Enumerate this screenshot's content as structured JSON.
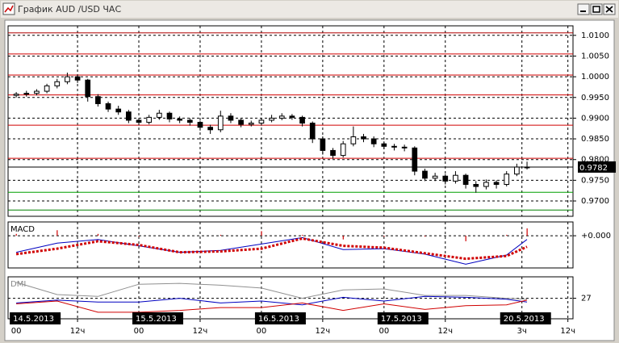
{
  "window": {
    "title": "График AUD /USD ЧАС"
  },
  "chart_data": [
    {
      "type": "candlestick",
      "x": [
        0,
        2,
        4,
        6,
        8,
        10,
        12,
        14,
        16,
        18,
        20,
        22,
        24,
        26,
        28,
        30,
        32,
        34,
        36,
        38,
        40,
        42,
        44,
        46,
        48,
        50,
        52,
        54,
        56,
        58,
        60,
        62,
        64,
        66,
        68,
        70,
        72,
        74,
        76,
        78,
        80,
        82,
        84,
        86,
        88,
        90,
        92,
        94,
        96,
        98,
        100
      ],
      "open": [
        0.9955,
        0.9958,
        0.996,
        0.9965,
        0.9978,
        0.9988,
        1.0,
        0.9992,
        0.9952,
        0.9935,
        0.9922,
        0.9915,
        0.9895,
        0.989,
        0.9902,
        0.9912,
        0.9898,
        0.9895,
        0.989,
        0.9878,
        0.9872,
        0.9905,
        0.9895,
        0.9885,
        0.9888,
        0.9895,
        0.99,
        0.9905,
        0.9902,
        0.9888,
        0.985,
        0.9822,
        0.981,
        0.9838,
        0.9855,
        0.985,
        0.9838,
        0.9832,
        0.983,
        0.9828,
        0.9772,
        0.9755,
        0.976,
        0.9748,
        0.9762,
        0.974,
        0.9735,
        0.9745,
        0.974,
        0.9765,
        0.9782
      ],
      "high": [
        0.9963,
        0.9966,
        0.997,
        0.9983,
        0.9995,
        1.001,
        1.0006,
        0.9995,
        0.9958,
        0.994,
        0.993,
        0.992,
        0.99,
        0.9908,
        0.992,
        0.9916,
        0.9904,
        0.99,
        0.9894,
        0.9884,
        0.9918,
        0.9912,
        0.99,
        0.9894,
        0.99,
        0.9908,
        0.9912,
        0.991,
        0.9906,
        0.9892,
        0.9856,
        0.9828,
        0.9845,
        0.988,
        0.9862,
        0.9856,
        0.9844,
        0.9838,
        0.9836,
        0.9832,
        0.9778,
        0.9768,
        0.9765,
        0.9772,
        0.9766,
        0.9748,
        0.9752,
        0.975,
        0.9772,
        0.979,
        0.9795
      ],
      "low": [
        0.995,
        0.9952,
        0.9955,
        0.996,
        0.9972,
        0.9982,
        0.9985,
        0.994,
        0.9928,
        0.9915,
        0.9908,
        0.9888,
        0.9883,
        0.9885,
        0.9896,
        0.989,
        0.9888,
        0.9882,
        0.987,
        0.9862,
        0.9866,
        0.9888,
        0.9878,
        0.988,
        0.9882,
        0.989,
        0.9895,
        0.9896,
        0.988,
        0.984,
        0.9812,
        0.9802,
        0.9805,
        0.9832,
        0.9842,
        0.983,
        0.9825,
        0.9822,
        0.982,
        0.9762,
        0.9748,
        0.9748,
        0.974,
        0.9742,
        0.973,
        0.972,
        0.9728,
        0.973,
        0.9735,
        0.976,
        0.9776
      ],
      "close": [
        0.9958,
        0.996,
        0.9965,
        0.9978,
        0.9988,
        1.0,
        0.9992,
        0.9952,
        0.9935,
        0.9922,
        0.9915,
        0.9895,
        0.989,
        0.9902,
        0.9912,
        0.9898,
        0.9895,
        0.989,
        0.9878,
        0.9872,
        0.9905,
        0.9895,
        0.9885,
        0.9888,
        0.9895,
        0.99,
        0.9905,
        0.9902,
        0.9888,
        0.985,
        0.9822,
        0.981,
        0.9838,
        0.9855,
        0.985,
        0.9838,
        0.9832,
        0.983,
        0.9828,
        0.9772,
        0.9755,
        0.976,
        0.9748,
        0.9762,
        0.974,
        0.9735,
        0.9745,
        0.974,
        0.9765,
        0.9782,
        0.9782
      ],
      "ylim": [
        0.9663,
        1.0123
      ],
      "yticks": [
        {
          "value": 1.01,
          "label": "1.0100"
        },
        {
          "value": 1.005,
          "label": "1.0050"
        },
        {
          "value": 1.0,
          "label": "1.0000"
        },
        {
          "value": 0.995,
          "label": "0.9950"
        },
        {
          "value": 0.99,
          "label": "0.9900"
        },
        {
          "value": 0.985,
          "label": "0.9850"
        },
        {
          "value": 0.98,
          "label": "0.9800"
        },
        {
          "value": 0.975,
          "label": "0.9750"
        },
        {
          "value": 0.97,
          "label": "0.9700"
        }
      ],
      "levels": [
        {
          "value": 1.0106,
          "color": "#b00000"
        },
        {
          "value": 1.0055,
          "color": "#d00000"
        },
        {
          "value": 1.0004,
          "color": "#d00000"
        },
        {
          "value": 0.9956,
          "color": "#d00000"
        },
        {
          "value": 0.9883,
          "color": "#d00000"
        },
        {
          "value": 0.9803,
          "color": "#d00000"
        },
        {
          "value": 0.9721,
          "color": "#00a000"
        },
        {
          "value": 0.9678,
          "color": "#008000"
        }
      ],
      "last_price": 0.9782
    },
    {
      "type": "line",
      "title": "MACD",
      "x": [
        0,
        8,
        16,
        24,
        32,
        40,
        48,
        56,
        64,
        72,
        80,
        88,
        96,
        100
      ],
      "series": [
        {
          "color": "#0000c0",
          "style": "solid",
          "values": [
            -0.0018,
            -0.0008,
            -0.0004,
            -0.0011,
            -0.0018,
            -0.0016,
            -0.0009,
            -0.0002,
            -0.0015,
            -0.0014,
            -0.002,
            -0.0031,
            -0.0021,
            -0.0004
          ]
        },
        {
          "color": "#d00000",
          "style": "dotted",
          "values": [
            -0.002,
            -0.0014,
            -0.0006,
            -0.001,
            -0.0018,
            -0.0017,
            -0.0014,
            -0.0003,
            -0.0011,
            -0.0013,
            -0.0019,
            -0.0025,
            -0.0022,
            -0.0012
          ]
        }
      ],
      "histogram": {
        "color": "#d00000",
        "values": [
          0.0002,
          0.0006,
          0.0002,
          -0.0001,
          0,
          0.0001,
          0.0005,
          0.0001,
          -0.0004,
          -0.0001,
          -0.0001,
          -0.0006,
          0.0001,
          0.0008
        ]
      },
      "ylim": [
        -0.0035,
        0.0015
      ],
      "yticks": [
        {
          "value": 0,
          "label": "+0.000"
        }
      ]
    },
    {
      "type": "line",
      "title": "DMI",
      "x": [
        0,
        8,
        16,
        24,
        32,
        40,
        48,
        56,
        64,
        72,
        80,
        88,
        96,
        100
      ],
      "series": [
        {
          "color": "#909090",
          "style": "solid",
          "values": [
            44,
            31,
            29,
            42,
            43,
            41,
            38,
            27,
            36,
            37,
            30,
            30,
            27,
            26
          ]
        },
        {
          "color": "#0000c0",
          "style": "solid",
          "values": [
            22,
            25,
            23,
            23,
            27,
            22,
            24,
            20,
            28,
            24,
            29,
            28,
            26,
            23
          ]
        },
        {
          "color": "#d00000",
          "style": "solid",
          "values": [
            21,
            24,
            12,
            12,
            14,
            17,
            17,
            22,
            14,
            21,
            15,
            19,
            20,
            25
          ]
        }
      ],
      "ylim": [
        5,
        50
      ],
      "yticks": [
        27
      ],
      "xlim": [
        -1.6,
        109
      ],
      "xticks": [
        {
          "value": 0,
          "label": "00"
        },
        {
          "value": 12,
          "label": "12ч"
        },
        {
          "value": 24,
          "label": "00"
        },
        {
          "value": 36,
          "label": "12ч"
        },
        {
          "value": 48,
          "label": "00"
        },
        {
          "value": 60,
          "label": "12ч"
        },
        {
          "value": 72,
          "label": "00"
        },
        {
          "value": 84,
          "label": "12ч"
        },
        {
          "value": 99,
          "label": "3ч"
        },
        {
          "value": 108,
          "label": "12ч"
        }
      ],
      "date_labels": [
        {
          "value": 0,
          "label": "14.5.2013"
        },
        {
          "value": 24,
          "label": "15.5.2013"
        },
        {
          "value": 48,
          "label": "16.5.2013"
        },
        {
          "value": 72,
          "label": "17.5.2013"
        },
        {
          "value": 96,
          "label": "20.5.2013"
        }
      ]
    }
  ]
}
